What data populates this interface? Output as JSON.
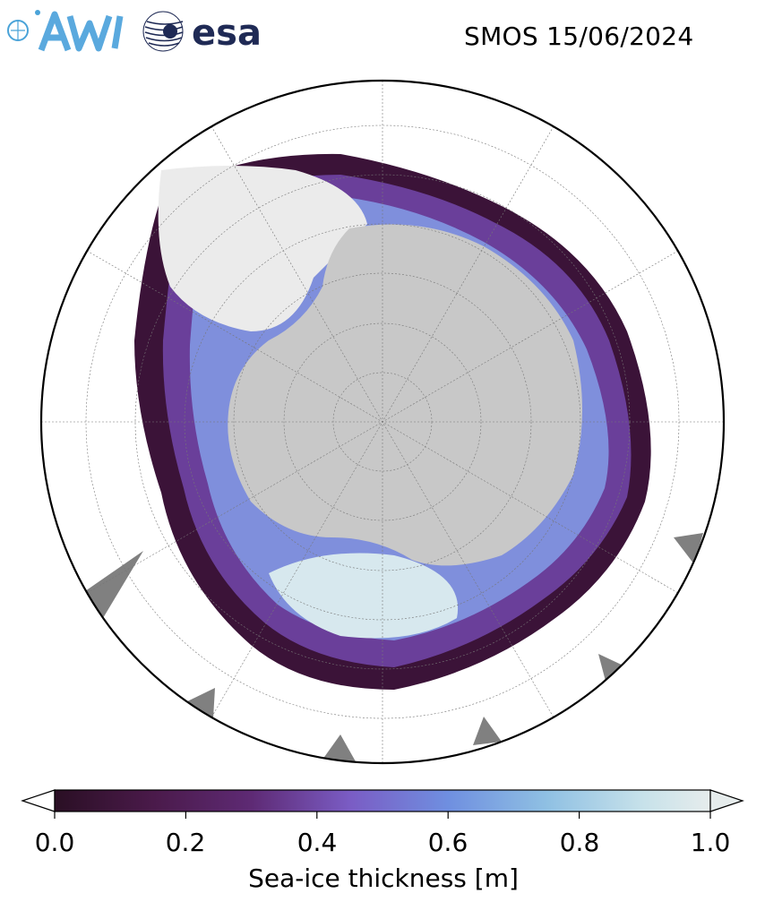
{
  "header": {
    "title": "SMOS 15/06/2024",
    "logos": [
      "AWI",
      "esa"
    ]
  },
  "map": {
    "projection": "south-polar-stereographic",
    "land_color": "#c8c8c8",
    "ice_free_ocean_color": "#ffffff",
    "ice_shelf_color": "#ebebeb",
    "missing_data_color": "#808080",
    "graticule": true
  },
  "colorbar": {
    "colormap": [
      "#2a0f24",
      "#4a1a4a",
      "#5e2a74",
      "#7a5cc4",
      "#6f8fe0",
      "#8fc0e3",
      "#c8e2ea",
      "#e6ecec"
    ],
    "extend": "both",
    "min": 0.0,
    "max": 1.0,
    "ticks": [
      "0.0",
      "0.2",
      "0.4",
      "0.6",
      "0.8",
      "1.0"
    ],
    "label": "Sea-ice thickness [m]"
  }
}
